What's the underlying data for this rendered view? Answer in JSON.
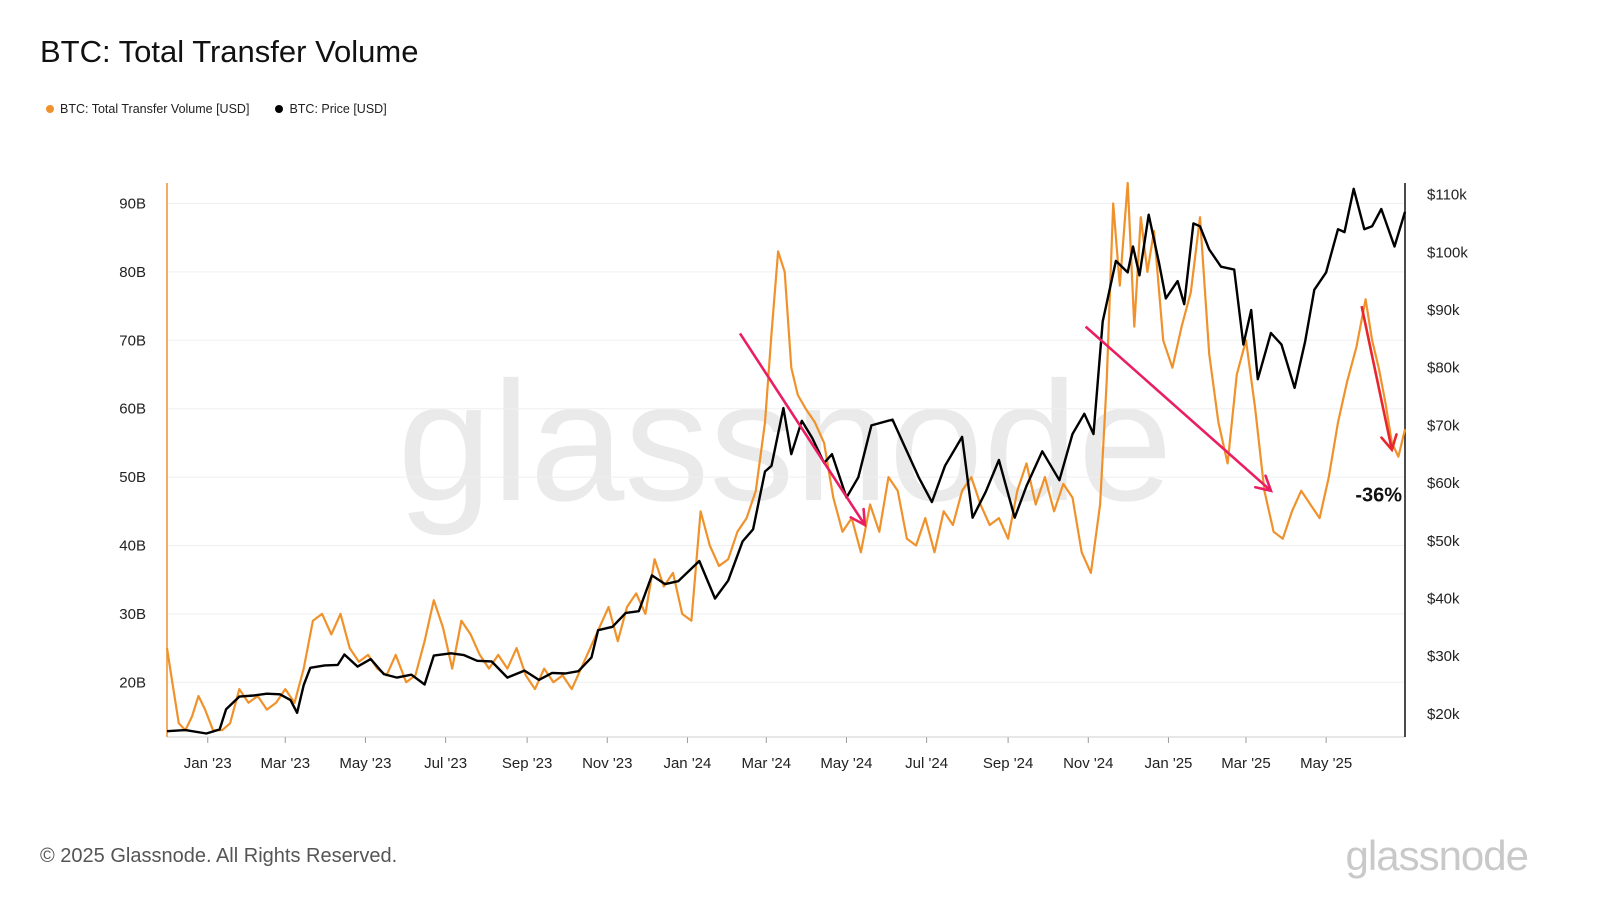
{
  "header": {
    "title": "BTC: Total Transfer Volume"
  },
  "legend": [
    {
      "label": "BTC: Total Transfer Volume [USD]",
      "color": "#f0922b"
    },
    {
      "label": "BTC: Price [USD]",
      "color": "#000000"
    }
  ],
  "footer": {
    "copyright": "© 2025 Glassnode. All Rights Reserved.",
    "brand": "glassnode"
  },
  "watermark": "glassnode",
  "chart_data": {
    "type": "line",
    "title": "BTC: Total Transfer Volume",
    "x_ticks": [
      "Jan '23",
      "Mar '23",
      "May '23",
      "Jul '23",
      "Sep '23",
      "Nov '23",
      "Jan '24",
      "Mar '24",
      "May '24",
      "Jul '24",
      "Sep '24",
      "Nov '24",
      "Jan '25",
      "Mar '25",
      "May '25"
    ],
    "left_axis": {
      "ticks": [
        "20B",
        "30B",
        "40B",
        "50B",
        "60B",
        "70B",
        "80B",
        "90B"
      ],
      "range": [
        12,
        93
      ]
    },
    "right_axis": {
      "ticks": [
        "$20k",
        "$30k",
        "$40k",
        "$50k",
        "$60k",
        "$70k",
        "$80k",
        "$90k",
        "$100k",
        "$110k"
      ],
      "range": [
        16,
        112
      ]
    },
    "x_range": [
      "2022-12-01",
      "2025-06-30"
    ],
    "series": [
      {
        "name": "BTC: Total Transfer Volume [USD]",
        "color": "#f0922b",
        "unit": "B USD",
        "points": [
          [
            "2022-12-01",
            25
          ],
          [
            "2022-12-05",
            20
          ],
          [
            "2022-12-10",
            14
          ],
          [
            "2022-12-15",
            13
          ],
          [
            "2022-12-20",
            15
          ],
          [
            "2022-12-25",
            18
          ],
          [
            "2022-12-30",
            16
          ],
          [
            "2023-01-05",
            13
          ],
          [
            "2023-01-12",
            13
          ],
          [
            "2023-01-18",
            14
          ],
          [
            "2023-01-25",
            19
          ],
          [
            "2023-02-01",
            17
          ],
          [
            "2023-02-08",
            18
          ],
          [
            "2023-02-15",
            16
          ],
          [
            "2023-02-22",
            17
          ],
          [
            "2023-03-01",
            19
          ],
          [
            "2023-03-08",
            17
          ],
          [
            "2023-03-15",
            22
          ],
          [
            "2023-03-22",
            29
          ],
          [
            "2023-03-29",
            30
          ],
          [
            "2023-04-05",
            27
          ],
          [
            "2023-04-12",
            30
          ],
          [
            "2023-04-19",
            25
          ],
          [
            "2023-04-26",
            23
          ],
          [
            "2023-05-03",
            24
          ],
          [
            "2023-05-10",
            22
          ],
          [
            "2023-05-17",
            21
          ],
          [
            "2023-05-24",
            24
          ],
          [
            "2023-06-01",
            20
          ],
          [
            "2023-06-08",
            21
          ],
          [
            "2023-06-15",
            26
          ],
          [
            "2023-06-22",
            32
          ],
          [
            "2023-06-29",
            28
          ],
          [
            "2023-07-06",
            22
          ],
          [
            "2023-07-13",
            29
          ],
          [
            "2023-07-20",
            27
          ],
          [
            "2023-07-27",
            24
          ],
          [
            "2023-08-03",
            22
          ],
          [
            "2023-08-10",
            24
          ],
          [
            "2023-08-17",
            22
          ],
          [
            "2023-08-24",
            25
          ],
          [
            "2023-08-31",
            21
          ],
          [
            "2023-09-07",
            19
          ],
          [
            "2023-09-14",
            22
          ],
          [
            "2023-09-21",
            20
          ],
          [
            "2023-09-28",
            21
          ],
          [
            "2023-10-05",
            19
          ],
          [
            "2023-10-12",
            22
          ],
          [
            "2023-10-19",
            25
          ],
          [
            "2023-10-26",
            28
          ],
          [
            "2023-11-02",
            31
          ],
          [
            "2023-11-09",
            26
          ],
          [
            "2023-11-16",
            31
          ],
          [
            "2023-11-23",
            33
          ],
          [
            "2023-11-30",
            30
          ],
          [
            "2023-12-07",
            38
          ],
          [
            "2023-12-14",
            34
          ],
          [
            "2023-12-21",
            36
          ],
          [
            "2023-12-28",
            30
          ],
          [
            "2024-01-04",
            29
          ],
          [
            "2024-01-11",
            45
          ],
          [
            "2024-01-18",
            40
          ],
          [
            "2024-01-25",
            37
          ],
          [
            "2024-02-01",
            38
          ],
          [
            "2024-02-08",
            42
          ],
          [
            "2024-02-15",
            44
          ],
          [
            "2024-02-22",
            48
          ],
          [
            "2024-02-29",
            58
          ],
          [
            "2024-03-05",
            71
          ],
          [
            "2024-03-10",
            83
          ],
          [
            "2024-03-15",
            80
          ],
          [
            "2024-03-20",
            66
          ],
          [
            "2024-03-25",
            62
          ],
          [
            "2024-03-31",
            60
          ],
          [
            "2024-04-07",
            58
          ],
          [
            "2024-04-14",
            55
          ],
          [
            "2024-04-21",
            47
          ],
          [
            "2024-04-28",
            42
          ],
          [
            "2024-05-05",
            44
          ],
          [
            "2024-05-12",
            39
          ],
          [
            "2024-05-19",
            46
          ],
          [
            "2024-05-26",
            42
          ],
          [
            "2024-06-02",
            50
          ],
          [
            "2024-06-09",
            48
          ],
          [
            "2024-06-16",
            41
          ],
          [
            "2024-06-23",
            40
          ],
          [
            "2024-06-30",
            44
          ],
          [
            "2024-07-07",
            39
          ],
          [
            "2024-07-14",
            45
          ],
          [
            "2024-07-21",
            43
          ],
          [
            "2024-07-28",
            48
          ],
          [
            "2024-08-04",
            50
          ],
          [
            "2024-08-11",
            46
          ],
          [
            "2024-08-18",
            43
          ],
          [
            "2024-08-25",
            44
          ],
          [
            "2024-09-01",
            41
          ],
          [
            "2024-09-08",
            48
          ],
          [
            "2024-09-15",
            52
          ],
          [
            "2024-09-22",
            46
          ],
          [
            "2024-09-29",
            50
          ],
          [
            "2024-10-06",
            45
          ],
          [
            "2024-10-13",
            49
          ],
          [
            "2024-10-20",
            47
          ],
          [
            "2024-10-27",
            39
          ],
          [
            "2024-11-03",
            36
          ],
          [
            "2024-11-10",
            46
          ],
          [
            "2024-11-15",
            64
          ],
          [
            "2024-11-20",
            90
          ],
          [
            "2024-11-25",
            78
          ],
          [
            "2024-12-01",
            93
          ],
          [
            "2024-12-06",
            72
          ],
          [
            "2024-12-11",
            88
          ],
          [
            "2024-12-16",
            80
          ],
          [
            "2024-12-21",
            86
          ],
          [
            "2024-12-28",
            70
          ],
          [
            "2025-01-04",
            66
          ],
          [
            "2025-01-11",
            72
          ],
          [
            "2025-01-18",
            77
          ],
          [
            "2025-01-25",
            88
          ],
          [
            "2025-02-01",
            68
          ],
          [
            "2025-02-08",
            58
          ],
          [
            "2025-02-15",
            52
          ],
          [
            "2025-02-22",
            65
          ],
          [
            "2025-03-01",
            70
          ],
          [
            "2025-03-08",
            60
          ],
          [
            "2025-03-15",
            48
          ],
          [
            "2025-03-22",
            42
          ],
          [
            "2025-03-29",
            41
          ],
          [
            "2025-04-05",
            45
          ],
          [
            "2025-04-12",
            48
          ],
          [
            "2025-04-19",
            46
          ],
          [
            "2025-04-26",
            44
          ],
          [
            "2025-05-03",
            50
          ],
          [
            "2025-05-10",
            58
          ],
          [
            "2025-05-17",
            64
          ],
          [
            "2025-05-24",
            69
          ],
          [
            "2025-05-31",
            76
          ],
          [
            "2025-06-05",
            70
          ],
          [
            "2025-06-10",
            66
          ],
          [
            "2025-06-15",
            61
          ],
          [
            "2025-06-20",
            55
          ],
          [
            "2025-06-25",
            53
          ],
          [
            "2025-06-30",
            57
          ]
        ]
      },
      {
        "name": "BTC: Price [USD]",
        "color": "#000000",
        "unit": "k USD",
        "points": [
          [
            "2022-12-01",
            17
          ],
          [
            "2022-12-15",
            17.2
          ],
          [
            "2022-12-31",
            16.6
          ],
          [
            "2023-01-10",
            17.3
          ],
          [
            "2023-01-15",
            20.8
          ],
          [
            "2023-01-25",
            23
          ],
          [
            "2023-02-05",
            23.2
          ],
          [
            "2023-02-15",
            23.5
          ],
          [
            "2023-02-25",
            23.4
          ],
          [
            "2023-03-05",
            22.4
          ],
          [
            "2023-03-10",
            20.2
          ],
          [
            "2023-03-15",
            25
          ],
          [
            "2023-03-20",
            28
          ],
          [
            "2023-03-31",
            28.4
          ],
          [
            "2023-04-10",
            28.5
          ],
          [
            "2023-04-15",
            30.3
          ],
          [
            "2023-04-25",
            28.2
          ],
          [
            "2023-05-05",
            29.5
          ],
          [
            "2023-05-15",
            26.9
          ],
          [
            "2023-05-25",
            26.3
          ],
          [
            "2023-06-05",
            26.8
          ],
          [
            "2023-06-15",
            25.1
          ],
          [
            "2023-06-22",
            30.1
          ],
          [
            "2023-07-05",
            30.5
          ],
          [
            "2023-07-15",
            30.2
          ],
          [
            "2023-07-25",
            29.2
          ],
          [
            "2023-08-05",
            29.1
          ],
          [
            "2023-08-17",
            26.3
          ],
          [
            "2023-08-30",
            27.5
          ],
          [
            "2023-09-10",
            25.9
          ],
          [
            "2023-09-20",
            27.1
          ],
          [
            "2023-09-30",
            27
          ],
          [
            "2023-10-10",
            27.4
          ],
          [
            "2023-10-20",
            29.8
          ],
          [
            "2023-10-25",
            34.5
          ],
          [
            "2023-11-05",
            35.1
          ],
          [
            "2023-11-15",
            37.5
          ],
          [
            "2023-11-25",
            37.8
          ],
          [
            "2023-12-05",
            44
          ],
          [
            "2023-12-15",
            42.5
          ],
          [
            "2023-12-25",
            43
          ],
          [
            "2024-01-10",
            46.5
          ],
          [
            "2024-01-22",
            40
          ],
          [
            "2024-02-01",
            43.1
          ],
          [
            "2024-02-12",
            49.9
          ],
          [
            "2024-02-20",
            52
          ],
          [
            "2024-02-29",
            62
          ],
          [
            "2024-03-05",
            63
          ],
          [
            "2024-03-14",
            73
          ],
          [
            "2024-03-20",
            65
          ],
          [
            "2024-03-28",
            70.8
          ],
          [
            "2024-04-05",
            67.8
          ],
          [
            "2024-04-14",
            63.5
          ],
          [
            "2024-04-20",
            65
          ],
          [
            "2024-05-01",
            57.5
          ],
          [
            "2024-05-10",
            61
          ],
          [
            "2024-05-20",
            70
          ],
          [
            "2024-06-05",
            71
          ],
          [
            "2024-06-15",
            66
          ],
          [
            "2024-06-25",
            61
          ],
          [
            "2024-07-05",
            56.7
          ],
          [
            "2024-07-15",
            63
          ],
          [
            "2024-07-28",
            68
          ],
          [
            "2024-08-05",
            54
          ],
          [
            "2024-08-15",
            58.5
          ],
          [
            "2024-08-25",
            64
          ],
          [
            "2024-09-06",
            54
          ],
          [
            "2024-09-15",
            59.5
          ],
          [
            "2024-09-27",
            65.5
          ],
          [
            "2024-10-10",
            60.5
          ],
          [
            "2024-10-20",
            68.5
          ],
          [
            "2024-10-29",
            72
          ],
          [
            "2024-11-05",
            68.5
          ],
          [
            "2024-11-12",
            88
          ],
          [
            "2024-11-22",
            98.5
          ],
          [
            "2024-12-01",
            96.5
          ],
          [
            "2024-12-05",
            101
          ],
          [
            "2024-12-10",
            96
          ],
          [
            "2024-12-17",
            106.5
          ],
          [
            "2024-12-25",
            98
          ],
          [
            "2024-12-30",
            92
          ],
          [
            "2025-01-08",
            95
          ],
          [
            "2025-01-13",
            91
          ],
          [
            "2025-01-20",
            105
          ],
          [
            "2025-01-25",
            104.5
          ],
          [
            "2025-02-01",
            100.5
          ],
          [
            "2025-02-10",
            97.5
          ],
          [
            "2025-02-20",
            97
          ],
          [
            "2025-02-27",
            84
          ],
          [
            "2025-03-05",
            90
          ],
          [
            "2025-03-10",
            78
          ],
          [
            "2025-03-20",
            86
          ],
          [
            "2025-03-28",
            84
          ],
          [
            "2025-04-07",
            76.5
          ],
          [
            "2025-04-15",
            84.5
          ],
          [
            "2025-04-22",
            93.5
          ],
          [
            "2025-05-01",
            96.5
          ],
          [
            "2025-05-10",
            104
          ],
          [
            "2025-05-15",
            103.5
          ],
          [
            "2025-05-22",
            111
          ],
          [
            "2025-05-30",
            104
          ],
          [
            "2025-06-05",
            104.5
          ],
          [
            "2025-06-12",
            107.5
          ],
          [
            "2025-06-22",
            101
          ],
          [
            "2025-06-30",
            107
          ]
        ]
      }
    ],
    "annotations": [
      {
        "type": "arrow",
        "color": "#e91e63",
        "from": [
          "2024-02-10",
          71
        ],
        "to": [
          "2024-05-15",
          43
        ]
      },
      {
        "type": "arrow",
        "color": "#e91e63",
        "from": [
          "2024-10-30",
          72
        ],
        "to": [
          "2025-03-20",
          48
        ]
      },
      {
        "type": "arrow",
        "color": "#e8262e",
        "from": [
          "2025-05-28",
          75
        ],
        "to": [
          "2025-06-20",
          54
        ]
      },
      {
        "type": "text",
        "text": "-36%",
        "at": [
          "2025-06-10",
          47
        ]
      }
    ]
  }
}
